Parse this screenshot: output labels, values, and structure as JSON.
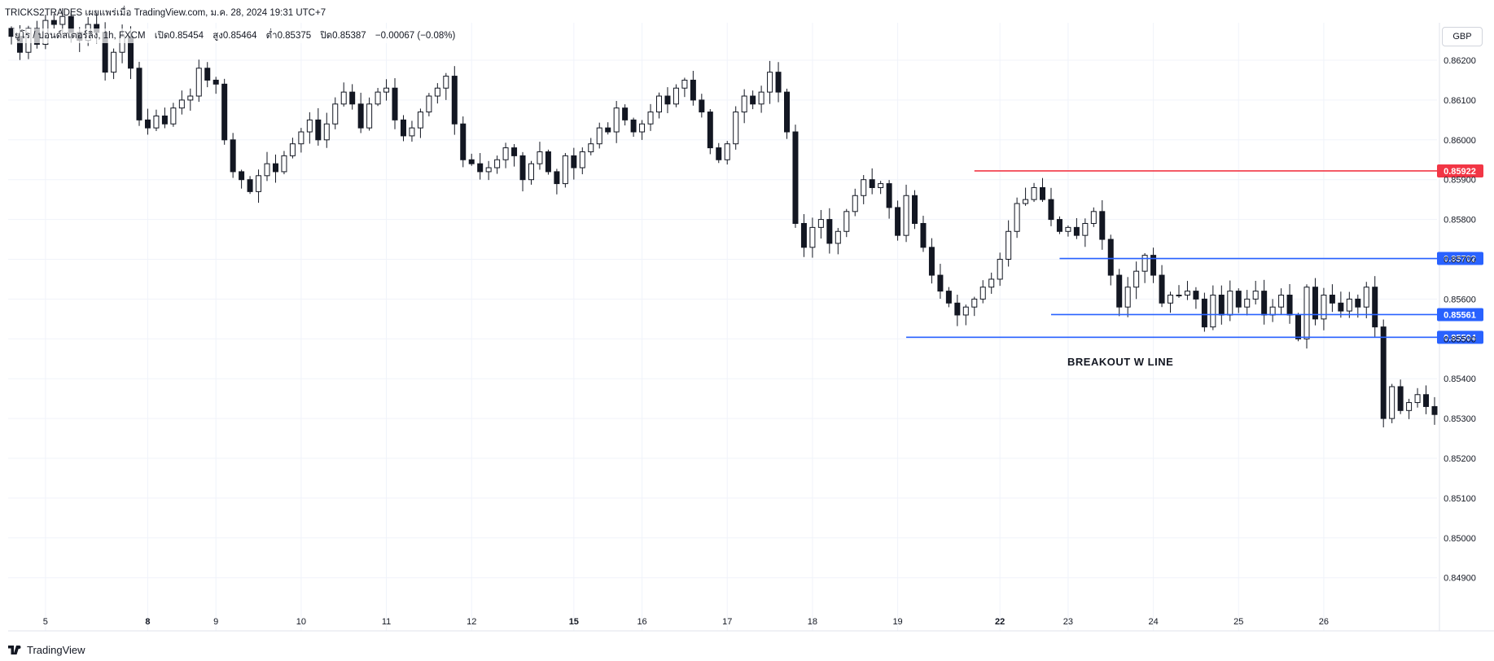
{
  "header": {
    "title": "TRICKS2TRADES เผยแพร่เมื่อ TradingView.com, ม.ค. 28, 2024 19:31 UTC+7"
  },
  "ohlc": {
    "symbol": "ยูโร / ปอนด์สเตอร์ลิง, 1h, FXCM",
    "open": "เปิด0.85454",
    "high": "สูง0.85464",
    "low": "ต่ำ0.85375",
    "close": "ปิด0.85387",
    "change": "−0.00067 (−0.08%)"
  },
  "toolbar": {
    "currency": "GBP"
  },
  "footer": {
    "brand": "TradingView"
  },
  "colors": {
    "candle": "#131722",
    "grid": "#f0f3fa",
    "red_line": "#f23645",
    "blue_line": "#2962ff",
    "axis_text": "#131722"
  },
  "chart_data": {
    "type": "candlestick",
    "symbol": "EUR/GBP 1h",
    "ylim": [
      0.8486,
      0.8626
    ],
    "y_ticks": [
      "0.86200",
      "0.86100",
      "0.86000",
      "0.85900",
      "0.85800",
      "0.85700",
      "0.85600",
      "0.85500",
      "0.85400",
      "0.85300",
      "0.85200",
      "0.85100",
      "0.85000",
      "0.84900"
    ],
    "x_ticks": [
      {
        "label": "5",
        "bold": false,
        "idx": 4
      },
      {
        "label": "8",
        "bold": true,
        "idx": 16
      },
      {
        "label": "9",
        "bold": false,
        "idx": 24
      },
      {
        "label": "10",
        "bold": false,
        "idx": 34
      },
      {
        "label": "11",
        "bold": false,
        "idx": 44
      },
      {
        "label": "12",
        "bold": false,
        "idx": 54
      },
      {
        "label": "15",
        "bold": true,
        "idx": 66
      },
      {
        "label": "16",
        "bold": false,
        "idx": 74
      },
      {
        "label": "17",
        "bold": false,
        "idx": 84
      },
      {
        "label": "18",
        "bold": false,
        "idx": 94
      },
      {
        "label": "19",
        "bold": false,
        "idx": 104
      },
      {
        "label": "22",
        "bold": true,
        "idx": 116
      },
      {
        "label": "23",
        "bold": false,
        "idx": 124
      },
      {
        "label": "24",
        "bold": false,
        "idx": 134
      },
      {
        "label": "25",
        "bold": false,
        "idx": 144
      },
      {
        "label": "26",
        "bold": false,
        "idx": 154
      }
    ],
    "closes": [
      0.8626,
      0.8622,
      0.8628,
      0.8624,
      0.863,
      0.8629,
      0.8631,
      0.8627,
      0.8625,
      0.8629,
      0.8627,
      0.8617,
      0.8622,
      0.8626,
      0.8618,
      0.8605,
      0.8603,
      0.8606,
      0.8604,
      0.8608,
      0.861,
      0.8611,
      0.8618,
      0.8615,
      0.8614,
      0.86,
      0.8592,
      0.859,
      0.8587,
      0.8591,
      0.8594,
      0.8592,
      0.8596,
      0.8599,
      0.8602,
      0.8605,
      0.86,
      0.8604,
      0.8609,
      0.8612,
      0.8609,
      0.8603,
      0.8609,
      0.8612,
      0.8613,
      0.8605,
      0.8601,
      0.8603,
      0.8607,
      0.8611,
      0.8613,
      0.8616,
      0.8604,
      0.8595,
      0.8594,
      0.8592,
      0.8593,
      0.8595,
      0.8598,
      0.8596,
      0.859,
      0.8594,
      0.8597,
      0.8592,
      0.8589,
      0.8596,
      0.8593,
      0.8597,
      0.8599,
      0.8603,
      0.8602,
      0.8608,
      0.8605,
      0.8602,
      0.8604,
      0.8607,
      0.8611,
      0.8609,
      0.8613,
      0.8615,
      0.861,
      0.8607,
      0.8598,
      0.8595,
      0.8599,
      0.8607,
      0.8611,
      0.8609,
      0.8612,
      0.8617,
      0.8612,
      0.8602,
      0.8579,
      0.8573,
      0.8578,
      0.858,
      0.8574,
      0.8577,
      0.8582,
      0.8586,
      0.859,
      0.8588,
      0.8589,
      0.8583,
      0.8576,
      0.8586,
      0.8579,
      0.8573,
      0.8566,
      0.8562,
      0.8559,
      0.8556,
      0.8558,
      0.856,
      0.8563,
      0.8565,
      0.857,
      0.8577,
      0.8584,
      0.8585,
      0.8588,
      0.8585,
      0.858,
      0.8577,
      0.8578,
      0.8576,
      0.8579,
      0.8582,
      0.8575,
      0.8566,
      0.8558,
      0.8563,
      0.8567,
      0.8571,
      0.8566,
      0.8559,
      0.8561,
      0.8561,
      0.8562,
      0.856,
      0.8553,
      0.8561,
      0.8556,
      0.8562,
      0.8558,
      0.856,
      0.8562,
      0.8556,
      0.8558,
      0.8561,
      0.8556,
      0.855,
      0.8563,
      0.8555,
      0.8561,
      0.8559,
      0.8557,
      0.856,
      0.8558,
      0.8563,
      0.8553,
      0.853,
      0.8538,
      0.8532,
      0.8534,
      0.8536,
      0.8533,
      0.8531
    ],
    "lines": [
      {
        "label": "0.85922",
        "value": 0.85922,
        "color": "red",
        "start_idx": 113
      },
      {
        "label": "0.85702",
        "value": 0.85702,
        "color": "blue",
        "start_idx": 123
      },
      {
        "label": "0.85561",
        "value": 0.85561,
        "color": "blue",
        "start_idx": 122
      },
      {
        "label": "0.85504",
        "value": 0.85504,
        "color": "blue",
        "start_idx": 105
      }
    ],
    "annotation": "BREAKOUT W LINE"
  }
}
